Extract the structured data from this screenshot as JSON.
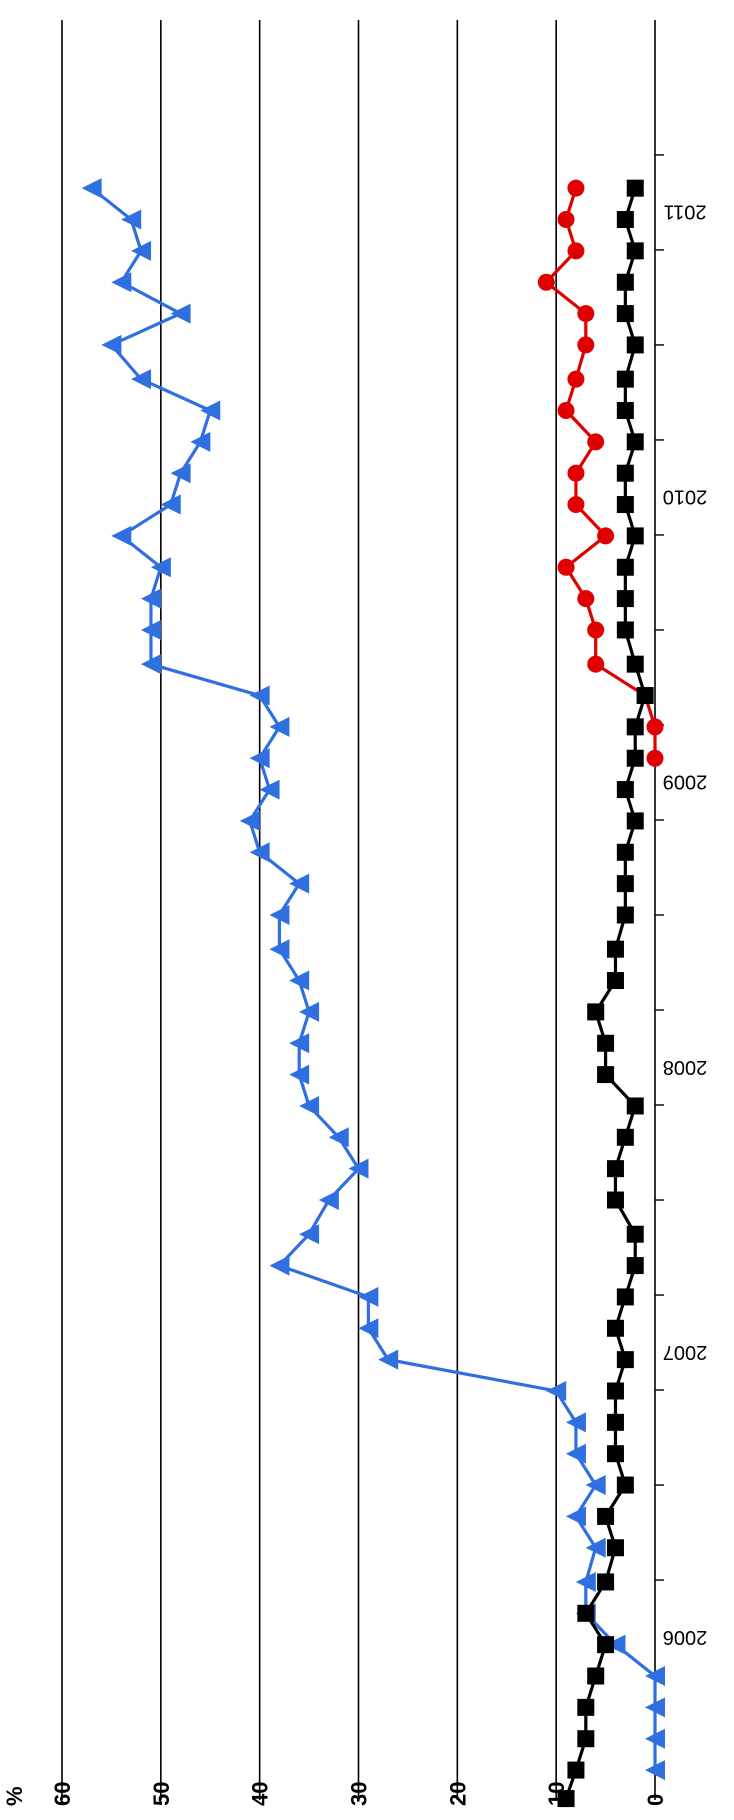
{
  "chart_data": {
    "type": "line",
    "orientation": "rotated-180",
    "ylabel": "%",
    "ylim": [
      0,
      60
    ],
    "y_ticks": [
      0,
      10,
      20,
      30,
      40,
      50,
      60
    ],
    "grid": true,
    "xlim": [
      2005.425,
      2011.67
    ],
    "x_tick_labels": [
      {
        "label": "2006",
        "x": 2006.0
      },
      {
        "label": "2007",
        "x": 2007.0
      },
      {
        "label": "2008",
        "x": 2008.0
      },
      {
        "label": "2009",
        "x": 2009.0
      },
      {
        "label": "2010",
        "x": 2010.0
      },
      {
        "label": "2011",
        "x": 2011.0
      }
    ],
    "series": [
      {
        "color": "#2f6fe0",
        "marker": "triangle",
        "points": [
          [
            2005.53,
            0
          ],
          [
            2005.64,
            0
          ],
          [
            2005.75,
            0
          ],
          [
            2005.86,
            0
          ],
          [
            2005.97,
            4
          ],
          [
            2006.08,
            7
          ],
          [
            2006.19,
            7
          ],
          [
            2006.31,
            6
          ],
          [
            2006.42,
            8
          ],
          [
            2006.53,
            6
          ],
          [
            2006.64,
            8
          ],
          [
            2006.75,
            8
          ],
          [
            2006.86,
            10
          ],
          [
            2006.97,
            27
          ],
          [
            2007.08,
            29
          ],
          [
            2007.19,
            29
          ],
          [
            2007.3,
            38
          ],
          [
            2007.41,
            35
          ],
          [
            2007.53,
            33
          ],
          [
            2007.64,
            30
          ],
          [
            2007.75,
            32
          ],
          [
            2007.86,
            35
          ],
          [
            2007.97,
            36
          ],
          [
            2008.08,
            36
          ],
          [
            2008.19,
            35
          ],
          [
            2008.3,
            36
          ],
          [
            2008.41,
            38
          ],
          [
            2008.53,
            38
          ],
          [
            2008.64,
            36
          ],
          [
            2008.75,
            40
          ],
          [
            2008.86,
            41
          ],
          [
            2008.97,
            39
          ],
          [
            2009.08,
            40
          ],
          [
            2009.19,
            38
          ],
          [
            2009.3,
            40
          ],
          [
            2009.41,
            51
          ],
          [
            2009.53,
            51
          ],
          [
            2009.64,
            51
          ],
          [
            2009.75,
            50
          ],
          [
            2009.86,
            54
          ],
          [
            2009.97,
            49
          ],
          [
            2010.08,
            48
          ],
          [
            2010.19,
            46
          ],
          [
            2010.3,
            45
          ],
          [
            2010.41,
            52
          ],
          [
            2010.53,
            55
          ],
          [
            2010.64,
            48
          ],
          [
            2010.75,
            54
          ],
          [
            2010.86,
            52
          ],
          [
            2010.97,
            53
          ],
          [
            2011.08,
            57
          ]
        ]
      },
      {
        "color": "#e00000",
        "marker": "circle",
        "points": [
          [
            2009.08,
            0
          ],
          [
            2009.19,
            0
          ],
          [
            2009.3,
            1
          ],
          [
            2009.41,
            6
          ],
          [
            2009.53,
            6
          ],
          [
            2009.64,
            7
          ],
          [
            2009.75,
            9
          ],
          [
            2009.86,
            5
          ],
          [
            2009.97,
            8
          ],
          [
            2010.08,
            8
          ],
          [
            2010.19,
            6
          ],
          [
            2010.3,
            9
          ],
          [
            2010.41,
            8
          ],
          [
            2010.53,
            7
          ],
          [
            2010.64,
            7
          ],
          [
            2010.75,
            11
          ],
          [
            2010.86,
            8
          ],
          [
            2010.97,
            9
          ],
          [
            2011.08,
            8
          ]
        ]
      },
      {
        "color": "#000000",
        "marker": "square",
        "points": [
          [
            2005.43,
            9
          ],
          [
            2005.53,
            8
          ],
          [
            2005.64,
            7
          ],
          [
            2005.75,
            7
          ],
          [
            2005.86,
            6
          ],
          [
            2005.97,
            5
          ],
          [
            2006.08,
            7
          ],
          [
            2006.19,
            5
          ],
          [
            2006.31,
            4
          ],
          [
            2006.42,
            5
          ],
          [
            2006.53,
            3
          ],
          [
            2006.64,
            4
          ],
          [
            2006.75,
            4
          ],
          [
            2006.86,
            4
          ],
          [
            2006.97,
            3
          ],
          [
            2007.08,
            4
          ],
          [
            2007.19,
            3
          ],
          [
            2007.3,
            2
          ],
          [
            2007.41,
            2
          ],
          [
            2007.53,
            4
          ],
          [
            2007.64,
            4
          ],
          [
            2007.75,
            3
          ],
          [
            2007.86,
            2
          ],
          [
            2007.97,
            5
          ],
          [
            2008.08,
            5
          ],
          [
            2008.19,
            6
          ],
          [
            2008.3,
            4
          ],
          [
            2008.41,
            4
          ],
          [
            2008.53,
            3
          ],
          [
            2008.64,
            3
          ],
          [
            2008.75,
            3
          ],
          [
            2008.86,
            2
          ],
          [
            2008.97,
            3
          ],
          [
            2009.08,
            2
          ],
          [
            2009.19,
            2
          ],
          [
            2009.3,
            1
          ],
          [
            2009.41,
            2
          ],
          [
            2009.53,
            3
          ],
          [
            2009.64,
            3
          ],
          [
            2009.75,
            3
          ],
          [
            2009.86,
            2
          ],
          [
            2009.97,
            3
          ],
          [
            2010.08,
            3
          ],
          [
            2010.19,
            2
          ],
          [
            2010.3,
            3
          ],
          [
            2010.41,
            3
          ],
          [
            2010.53,
            2
          ],
          [
            2010.64,
            3
          ],
          [
            2010.75,
            3
          ],
          [
            2010.86,
            2
          ],
          [
            2010.97,
            3
          ],
          [
            2011.08,
            2
          ]
        ]
      }
    ]
  }
}
